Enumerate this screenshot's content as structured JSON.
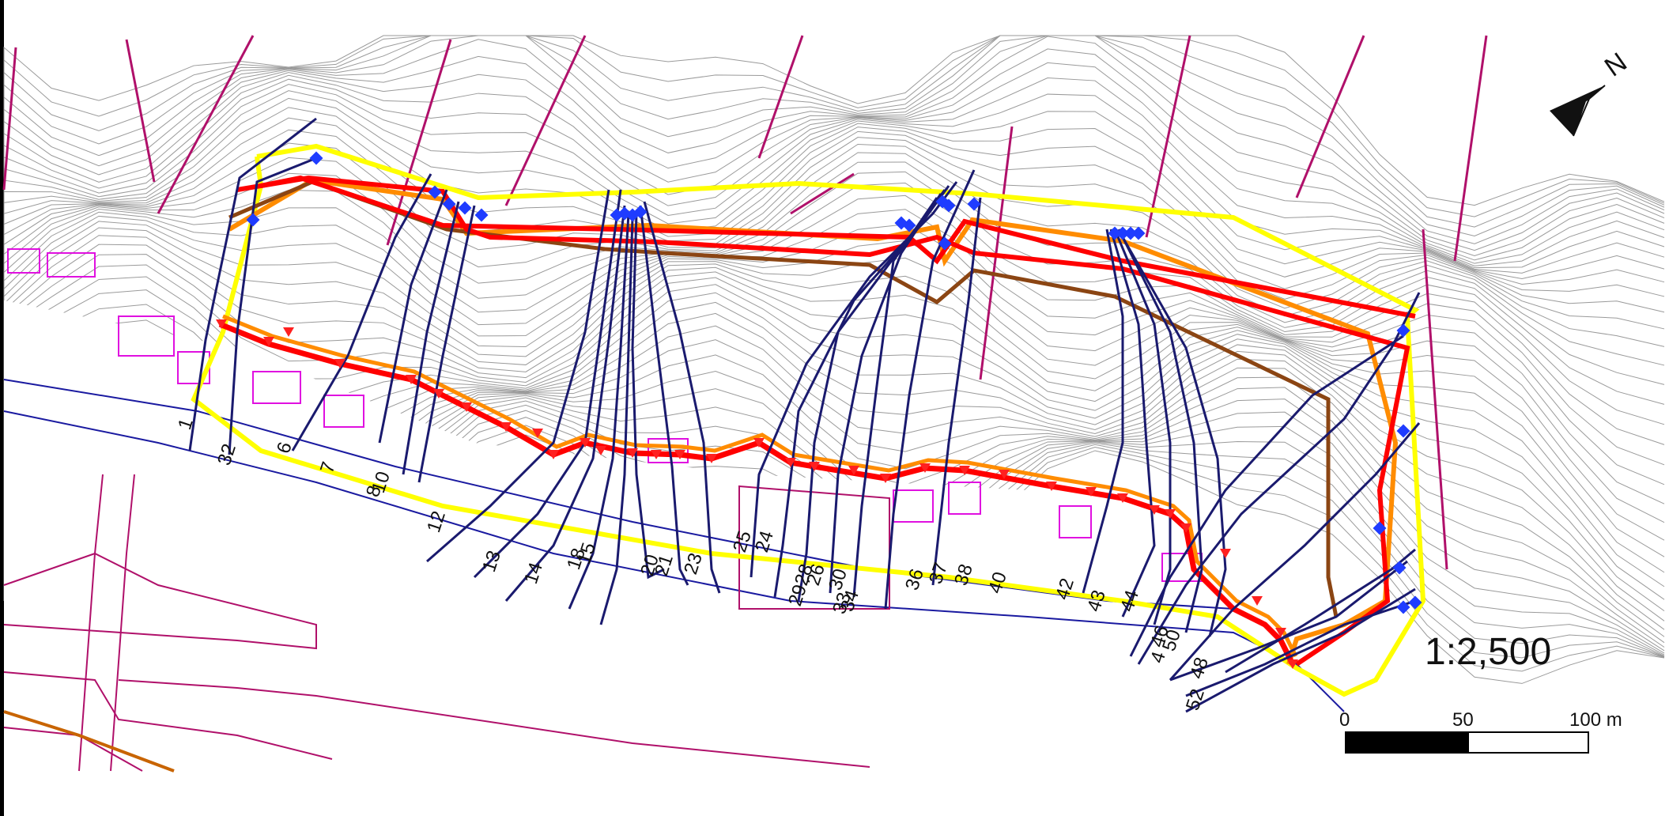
{
  "map": {
    "scale_ratio": "1:2,500",
    "north_arrow": {
      "icon": "north-arrow-icon",
      "label": "N"
    },
    "scale_bar": {
      "ticks": [
        "0",
        "50",
        "100 m"
      ]
    },
    "colors": {
      "boundary_yellow": "#ffff00",
      "zone_red": "#ff0000",
      "zone_orange": "#ff8c00",
      "zone_brown": "#8b4513",
      "trajectory_navy": "#1a1a6e",
      "source_marker_blue": "#1f3cff",
      "stop_marker_red": "#ff2020",
      "contour_gray": "#9a9a9a",
      "valley_magenta": "#b0106a",
      "road_blue": "#1a1aa0",
      "building_magenta": "#e010e0"
    },
    "trajectory_labels": [
      "1",
      "32",
      "6",
      "7",
      "10",
      "8",
      "12",
      "13",
      "14",
      "15",
      "18",
      "20",
      "21",
      "23",
      "25",
      "24",
      "29",
      "28",
      "26",
      "30",
      "33",
      "34",
      "36",
      "37",
      "38",
      "40",
      "42",
      "43",
      "44",
      "46",
      "4",
      "50",
      "48",
      "52"
    ]
  }
}
